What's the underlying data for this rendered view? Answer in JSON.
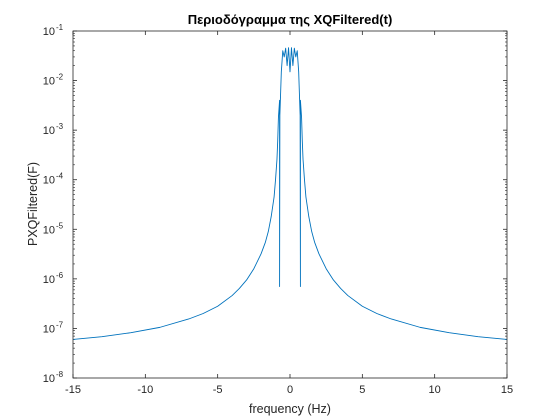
{
  "chart_data": {
    "type": "line",
    "title": "Περιοδόγραμμα της XQFiltered(t)",
    "xlabel": "frequency (Hz)",
    "ylabel": "PXQFiltered(F)",
    "xlim": [
      -15,
      15
    ],
    "ylim": [
      1e-08,
      0.1
    ],
    "y_scale": "log",
    "grid": false,
    "box": true,
    "line_color": "#0072BD",
    "x_ticks": [
      -15,
      -10,
      -5,
      0,
      5,
      10,
      15
    ],
    "x_tick_labels": [
      "-15",
      "-10",
      "-5",
      "0",
      "5",
      "10",
      "15"
    ],
    "y_ticks": [
      1e-08,
      1e-07,
      1e-06,
      1e-05,
      0.0001,
      0.001,
      0.01,
      0.1
    ],
    "y_tick_labels": [
      {
        "base": "10",
        "exp": "-8"
      },
      {
        "base": "10",
        "exp": "-7"
      },
      {
        "base": "10",
        "exp": "-6"
      },
      {
        "base": "10",
        "exp": "-5"
      },
      {
        "base": "10",
        "exp": "-4"
      },
      {
        "base": "10",
        "exp": "-3"
      },
      {
        "base": "10",
        "exp": "-2"
      },
      {
        "base": "10",
        "exp": "-1"
      }
    ],
    "series": [
      {
        "x": [
          -15,
          -13,
          -11,
          -9,
          -7,
          -6,
          -5,
          -4,
          -3.5,
          -3,
          -2.5,
          -2,
          -1.7,
          -1.5,
          -1.3,
          -1.1,
          -1.0,
          -0.9,
          -0.85,
          -0.8,
          -0.72,
          -0.72,
          -0.7,
          -0.6,
          -0.5,
          -0.4,
          -0.3,
          -0.2,
          -0.1,
          0,
          0.1,
          0.2,
          0.3,
          0.4,
          0.5,
          0.6,
          0.7,
          0.72,
          0.72,
          0.8,
          0.85,
          0.9,
          1.0,
          1.1,
          1.3,
          1.5,
          1.7,
          2,
          2.5,
          3,
          3.5,
          4,
          5,
          6,
          7,
          9,
          11,
          13,
          15
        ],
        "y": [
          6e-08,
          6.8e-08,
          8.2e-08,
          1.05e-07,
          1.55e-07,
          2e-07,
          2.8e-07,
          4.6e-07,
          6.4e-07,
          9.5e-07,
          1.6e-06,
          3.2e-06,
          5.5e-06,
          9e-06,
          1.8e-05,
          4.5e-05,
          0.0001,
          0.00026,
          0.0006,
          0.0018,
          0.004,
          7e-07,
          0.002,
          0.015,
          0.04,
          0.03,
          0.045,
          0.02,
          0.046,
          0.015,
          0.046,
          0.02,
          0.045,
          0.03,
          0.04,
          0.015,
          0.002,
          7e-07,
          0.004,
          0.0018,
          0.0006,
          0.00026,
          0.0001,
          4.5e-05,
          1.8e-05,
          9e-06,
          5.5e-06,
          3.2e-06,
          1.6e-06,
          9.5e-07,
          6.4e-07,
          4.6e-07,
          2.8e-07,
          2e-07,
          1.55e-07,
          1.05e-07,
          8.2e-08,
          6.8e-08,
          6e-08
        ]
      }
    ]
  }
}
